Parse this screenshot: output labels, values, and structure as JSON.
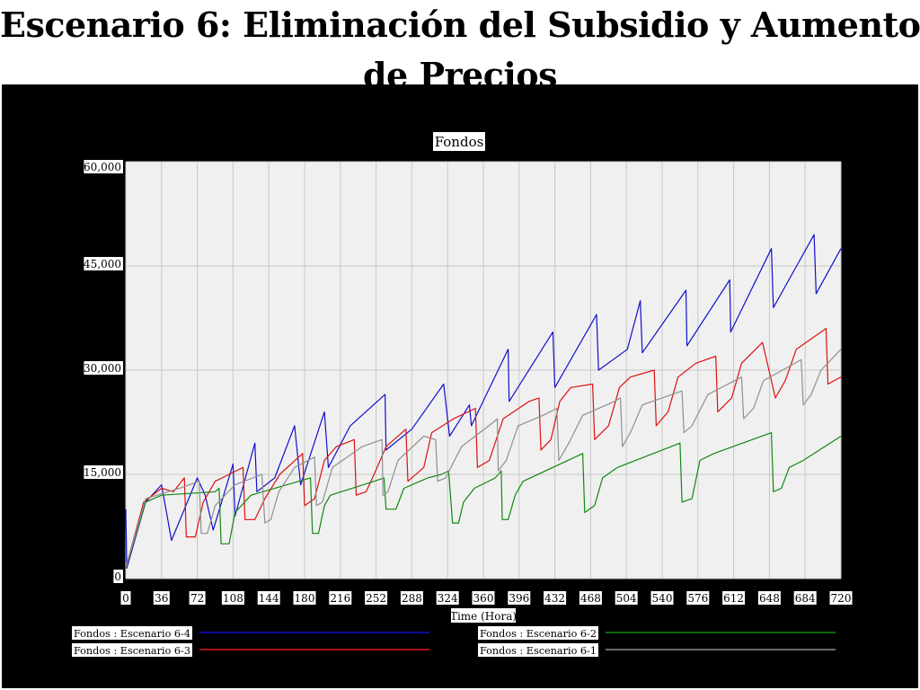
{
  "slide": {
    "title_line1": "Escenario 6: Eliminación del Subsidio y Aumento",
    "title_line2": "de Precios"
  },
  "colors": {
    "panel_background": "#000000",
    "plot_background": "#f0f0f0",
    "grid": "#c8c8c8",
    "label_background": "#ffffff"
  },
  "chart_data": {
    "type": "line",
    "title": "Fondos",
    "xlabel": "Time (Hora)",
    "ylabel": "",
    "xlim": [
      0,
      720
    ],
    "ylim": [
      0,
      60000
    ],
    "grid": true,
    "legend_placement": "bottom",
    "x_ticks": [
      0,
      36,
      72,
      108,
      144,
      180,
      216,
      252,
      288,
      324,
      360,
      396,
      432,
      468,
      504,
      540,
      576,
      612,
      648,
      684,
      720
    ],
    "x_tick_labels": [
      "0",
      "36",
      "72",
      "108",
      "144",
      "180",
      "216",
      "252",
      "288",
      "324",
      "360",
      "396",
      "432",
      "468",
      "504",
      "540",
      "576",
      "612",
      "648",
      "684",
      "720"
    ],
    "y_ticks": [
      0,
      15000,
      30000,
      45000,
      60000
    ],
    "y_tick_labels": [
      "0",
      "15,000",
      "30,000",
      "45,000",
      "60,000"
    ],
    "series": [
      {
        "name": "Fondos : Escenario 6-4",
        "color": "#1010cc",
        "points": [
          [
            0,
            10000
          ],
          [
            1,
            1500
          ],
          [
            20,
            11000
          ],
          [
            36,
            13500
          ],
          [
            46,
            5500
          ],
          [
            72,
            14500
          ],
          [
            80,
            12000
          ],
          [
            88,
            7000
          ],
          [
            108,
            16500
          ],
          [
            110,
            9000
          ],
          [
            130,
            19500
          ],
          [
            132,
            12500
          ],
          [
            150,
            14500
          ],
          [
            170,
            22000
          ],
          [
            176,
            13500
          ],
          [
            200,
            24000
          ],
          [
            204,
            16000
          ],
          [
            226,
            22000
          ],
          [
            261,
            26500
          ],
          [
            262,
            18500
          ],
          [
            288,
            21500
          ],
          [
            320,
            28000
          ],
          [
            326,
            20500
          ],
          [
            346,
            25000
          ],
          [
            348,
            22000
          ],
          [
            385,
            33000
          ],
          [
            386,
            25500
          ],
          [
            430,
            35500
          ],
          [
            432,
            27500
          ],
          [
            474,
            38000
          ],
          [
            476,
            30000
          ],
          [
            505,
            33000
          ],
          [
            518,
            40000
          ],
          [
            520,
            32500
          ],
          [
            564,
            41500
          ],
          [
            565,
            33500
          ],
          [
            608,
            43000
          ],
          [
            609,
            35500
          ],
          [
            650,
            47500
          ],
          [
            652,
            39000
          ],
          [
            693,
            49500
          ],
          [
            695,
            41000
          ],
          [
            720,
            47500
          ]
        ]
      },
      {
        "name": "Fondos : Escenario 6-3",
        "color": "#dd1111",
        "points": [
          [
            0,
            1500
          ],
          [
            18,
            11000
          ],
          [
            36,
            13000
          ],
          [
            48,
            12500
          ],
          [
            59,
            14500
          ],
          [
            61,
            6000
          ],
          [
            70,
            6000
          ],
          [
            78,
            11000
          ],
          [
            90,
            14000
          ],
          [
            118,
            16000
          ],
          [
            120,
            8500
          ],
          [
            130,
            8500
          ],
          [
            140,
            11500
          ],
          [
            155,
            15000
          ],
          [
            178,
            18000
          ],
          [
            180,
            10500
          ],
          [
            190,
            11500
          ],
          [
            200,
            17000
          ],
          [
            212,
            19000
          ],
          [
            230,
            20000
          ],
          [
            232,
            12000
          ],
          [
            242,
            12500
          ],
          [
            250,
            15000
          ],
          [
            262,
            19000
          ],
          [
            282,
            21500
          ],
          [
            284,
            14000
          ],
          [
            300,
            16000
          ],
          [
            308,
            21000
          ],
          [
            330,
            23000
          ],
          [
            352,
            24500
          ],
          [
            354,
            16000
          ],
          [
            366,
            17000
          ],
          [
            380,
            23000
          ],
          [
            406,
            25500
          ],
          [
            416,
            26000
          ],
          [
            418,
            18500
          ],
          [
            428,
            20000
          ],
          [
            437,
            25500
          ],
          [
            448,
            27500
          ],
          [
            470,
            28000
          ],
          [
            472,
            20000
          ],
          [
            486,
            22000
          ],
          [
            497,
            27500
          ],
          [
            508,
            29000
          ],
          [
            532,
            30000
          ],
          [
            534,
            22000
          ],
          [
            546,
            24000
          ],
          [
            556,
            29000
          ],
          [
            574,
            31000
          ],
          [
            594,
            32000
          ],
          [
            596,
            24000
          ],
          [
            610,
            26000
          ],
          [
            620,
            31000
          ],
          [
            641,
            34000
          ],
          [
            654,
            26000
          ],
          [
            664,
            28500
          ],
          [
            675,
            33000
          ],
          [
            705,
            36000
          ],
          [
            707,
            28000
          ],
          [
            720,
            29000
          ]
        ]
      },
      {
        "name": "Fondos : Escenario 6-2",
        "color": "#118811",
        "points": [
          [
            0,
            1500
          ],
          [
            20,
            11000
          ],
          [
            36,
            12000
          ],
          [
            90,
            12500
          ],
          [
            94,
            13000
          ],
          [
            96,
            5000
          ],
          [
            104,
            5000
          ],
          [
            110,
            9500
          ],
          [
            126,
            12000
          ],
          [
            186,
            14500
          ],
          [
            188,
            6500
          ],
          [
            194,
            6500
          ],
          [
            200,
            10500
          ],
          [
            206,
            12000
          ],
          [
            250,
            14000
          ],
          [
            260,
            14500
          ],
          [
            262,
            10000
          ],
          [
            272,
            10000
          ],
          [
            280,
            13000
          ],
          [
            304,
            14500
          ],
          [
            318,
            15000
          ],
          [
            325,
            15500
          ],
          [
            329,
            8000
          ],
          [
            335,
            8000
          ],
          [
            340,
            11000
          ],
          [
            351,
            13000
          ],
          [
            372,
            14500
          ],
          [
            378,
            15500
          ],
          [
            379,
            8500
          ],
          [
            385,
            8500
          ],
          [
            392,
            12000
          ],
          [
            400,
            14000
          ],
          [
            460,
            18000
          ],
          [
            462,
            9500
          ],
          [
            472,
            10500
          ],
          [
            480,
            14500
          ],
          [
            495,
            16000
          ],
          [
            558,
            19500
          ],
          [
            560,
            11000
          ],
          [
            570,
            11500
          ],
          [
            578,
            17000
          ],
          [
            592,
            18000
          ],
          [
            650,
            21000
          ],
          [
            652,
            12500
          ],
          [
            660,
            13000
          ],
          [
            668,
            16000
          ],
          [
            682,
            17000
          ],
          [
            720,
            20500
          ]
        ]
      },
      {
        "name": "Fondos : Escenario 6-1",
        "color": "#909090",
        "points": [
          [
            0,
            1500
          ],
          [
            20,
            11500
          ],
          [
            54,
            13000
          ],
          [
            74,
            14000
          ],
          [
            76,
            6500
          ],
          [
            82,
            6500
          ],
          [
            90,
            10500
          ],
          [
            110,
            13500
          ],
          [
            137,
            15000
          ],
          [
            140,
            8000
          ],
          [
            146,
            8500
          ],
          [
            154,
            12500
          ],
          [
            170,
            16000
          ],
          [
            190,
            17500
          ],
          [
            192,
            10500
          ],
          [
            198,
            11000
          ],
          [
            208,
            16000
          ],
          [
            238,
            19000
          ],
          [
            258,
            20000
          ],
          [
            259,
            12000
          ],
          [
            264,
            12500
          ],
          [
            274,
            17000
          ],
          [
            300,
            20500
          ],
          [
            312,
            20000
          ],
          [
            314,
            14000
          ],
          [
            322,
            14500
          ],
          [
            338,
            19000
          ],
          [
            370,
            22500
          ],
          [
            374,
            23000
          ],
          [
            375,
            15500
          ],
          [
            383,
            17000
          ],
          [
            395,
            22000
          ],
          [
            420,
            23500
          ],
          [
            434,
            24500
          ],
          [
            436,
            17000
          ],
          [
            446,
            19500
          ],
          [
            460,
            23500
          ],
          [
            492,
            25500
          ],
          [
            498,
            26000
          ],
          [
            500,
            19000
          ],
          [
            508,
            21000
          ],
          [
            520,
            25000
          ],
          [
            560,
            27000
          ],
          [
            562,
            21000
          ],
          [
            570,
            22000
          ],
          [
            586,
            26500
          ],
          [
            620,
            29000
          ],
          [
            622,
            23000
          ],
          [
            632,
            24500
          ],
          [
            642,
            28500
          ],
          [
            680,
            31500
          ],
          [
            682,
            25000
          ],
          [
            690,
            26500
          ],
          [
            700,
            30000
          ],
          [
            720,
            33000
          ]
        ]
      }
    ],
    "legend": [
      {
        "label": "Fondos : Escenario 6-4",
        "color": "#1010cc"
      },
      {
        "label": "Fondos : Escenario 6-3",
        "color": "#dd1111"
      },
      {
        "label": "Fondos : Escenario 6-2",
        "color": "#118811"
      },
      {
        "label": "Fondos : Escenario 6-1",
        "color": "#909090"
      }
    ]
  }
}
